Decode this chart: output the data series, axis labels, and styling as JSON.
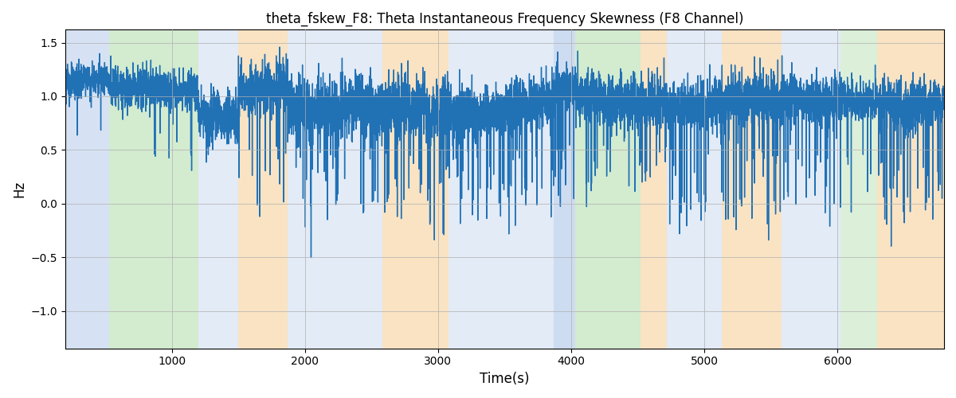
{
  "title": "theta_fskew_F8: Theta Instantaneous Frequency Skewness (F8 Channel)",
  "xlabel": "Time(s)",
  "ylabel": "Hz",
  "xlim": [
    200,
    6800
  ],
  "ylim": [
    -1.35,
    1.62
  ],
  "yticks": [
    -1.0,
    -0.5,
    0.0,
    0.5,
    1.0,
    1.5
  ],
  "xticks": [
    1000,
    2000,
    3000,
    4000,
    5000,
    6000
  ],
  "line_color": "#2171b5",
  "line_width": 1.0,
  "background_color": "#ffffff",
  "grid_color": "#b0b0b0",
  "bg_bands": [
    {
      "xmin": 200,
      "xmax": 530,
      "color": "#aec6e8",
      "alpha": 0.5
    },
    {
      "xmin": 530,
      "xmax": 1200,
      "color": "#a8d8a0",
      "alpha": 0.5
    },
    {
      "xmin": 1200,
      "xmax": 1500,
      "color": "#aec6e8",
      "alpha": 0.35
    },
    {
      "xmin": 1500,
      "xmax": 1870,
      "color": "#f5c888",
      "alpha": 0.5
    },
    {
      "xmin": 1870,
      "xmax": 2580,
      "color": "#aec6e8",
      "alpha": 0.35
    },
    {
      "xmin": 2580,
      "xmax": 3080,
      "color": "#f5c888",
      "alpha": 0.5
    },
    {
      "xmin": 3080,
      "xmax": 3870,
      "color": "#aec6e8",
      "alpha": 0.35
    },
    {
      "xmin": 3870,
      "xmax": 4030,
      "color": "#aec6e8",
      "alpha": 0.6
    },
    {
      "xmin": 4030,
      "xmax": 4520,
      "color": "#a8d8a0",
      "alpha": 0.5
    },
    {
      "xmin": 4520,
      "xmax": 4720,
      "color": "#f5c888",
      "alpha": 0.5
    },
    {
      "xmin": 4720,
      "xmax": 5130,
      "color": "#aec6e8",
      "alpha": 0.35
    },
    {
      "xmin": 5130,
      "xmax": 5580,
      "color": "#f5c888",
      "alpha": 0.5
    },
    {
      "xmin": 5580,
      "xmax": 6020,
      "color": "#aec6e8",
      "alpha": 0.35
    },
    {
      "xmin": 6020,
      "xmax": 6300,
      "color": "#a8d8a0",
      "alpha": 0.4
    },
    {
      "xmin": 6300,
      "xmax": 6800,
      "color": "#f5c888",
      "alpha": 0.5
    }
  ],
  "segments": [
    {
      "tmin": 200,
      "tmax": 530,
      "base": 1.12,
      "std": 0.08,
      "spike_prob": 0.008,
      "spike_range": [
        -0.7,
        -0.3
      ]
    },
    {
      "tmin": 530,
      "tmax": 1200,
      "base": 1.05,
      "std": 0.1,
      "spike_prob": 0.015,
      "spike_range": [
        -0.8,
        -0.3
      ]
    },
    {
      "tmin": 1200,
      "tmax": 1500,
      "base": 0.85,
      "std": 0.12,
      "spike_prob": 0.005,
      "spike_range": [
        -0.5,
        -0.2
      ]
    },
    {
      "tmin": 1500,
      "tmax": 1870,
      "base": 1.1,
      "std": 0.12,
      "spike_prob": 0.04,
      "spike_range": [
        -1.15,
        -0.4
      ]
    },
    {
      "tmin": 1870,
      "tmax": 2580,
      "base": 0.85,
      "std": 0.15,
      "spike_prob": 0.06,
      "spike_range": [
        -1.2,
        -0.4
      ]
    },
    {
      "tmin": 2580,
      "tmax": 3080,
      "base": 0.9,
      "std": 0.15,
      "spike_prob": 0.07,
      "spike_range": [
        -1.1,
        -0.3
      ]
    },
    {
      "tmin": 3080,
      "tmax": 3870,
      "base": 0.9,
      "std": 0.12,
      "spike_prob": 0.06,
      "spike_range": [
        -1.1,
        -0.3
      ]
    },
    {
      "tmin": 3870,
      "tmax": 4030,
      "base": 1.05,
      "std": 0.1,
      "spike_prob": 0.04,
      "spike_range": [
        -1.1,
        -0.4
      ]
    },
    {
      "tmin": 4030,
      "tmax": 4520,
      "base": 0.95,
      "std": 0.12,
      "spike_prob": 0.04,
      "spike_range": [
        -0.9,
        -0.3
      ]
    },
    {
      "tmin": 4520,
      "tmax": 4720,
      "base": 1.0,
      "std": 0.12,
      "spike_prob": 0.06,
      "spike_range": [
        -1.1,
        -0.4
      ]
    },
    {
      "tmin": 4720,
      "tmax": 5130,
      "base": 0.95,
      "std": 0.12,
      "spike_prob": 0.07,
      "spike_range": [
        -1.2,
        -0.4
      ]
    },
    {
      "tmin": 5130,
      "tmax": 5580,
      "base": 0.95,
      "std": 0.12,
      "spike_prob": 0.07,
      "spike_range": [
        -1.2,
        -0.4
      ]
    },
    {
      "tmin": 5580,
      "tmax": 6020,
      "base": 0.95,
      "std": 0.12,
      "spike_prob": 0.07,
      "spike_range": [
        -1.2,
        -0.4
      ]
    },
    {
      "tmin": 6020,
      "tmax": 6300,
      "base": 1.0,
      "std": 0.1,
      "spike_prob": 0.05,
      "spike_range": [
        -1.0,
        -0.3
      ]
    },
    {
      "tmin": 6300,
      "tmax": 6800,
      "base": 0.95,
      "std": 0.12,
      "spike_prob": 0.06,
      "spike_range": [
        -1.2,
        -0.4
      ]
    }
  ],
  "seed": 123,
  "n_points": 6600,
  "time_start": 200,
  "time_end": 6800
}
